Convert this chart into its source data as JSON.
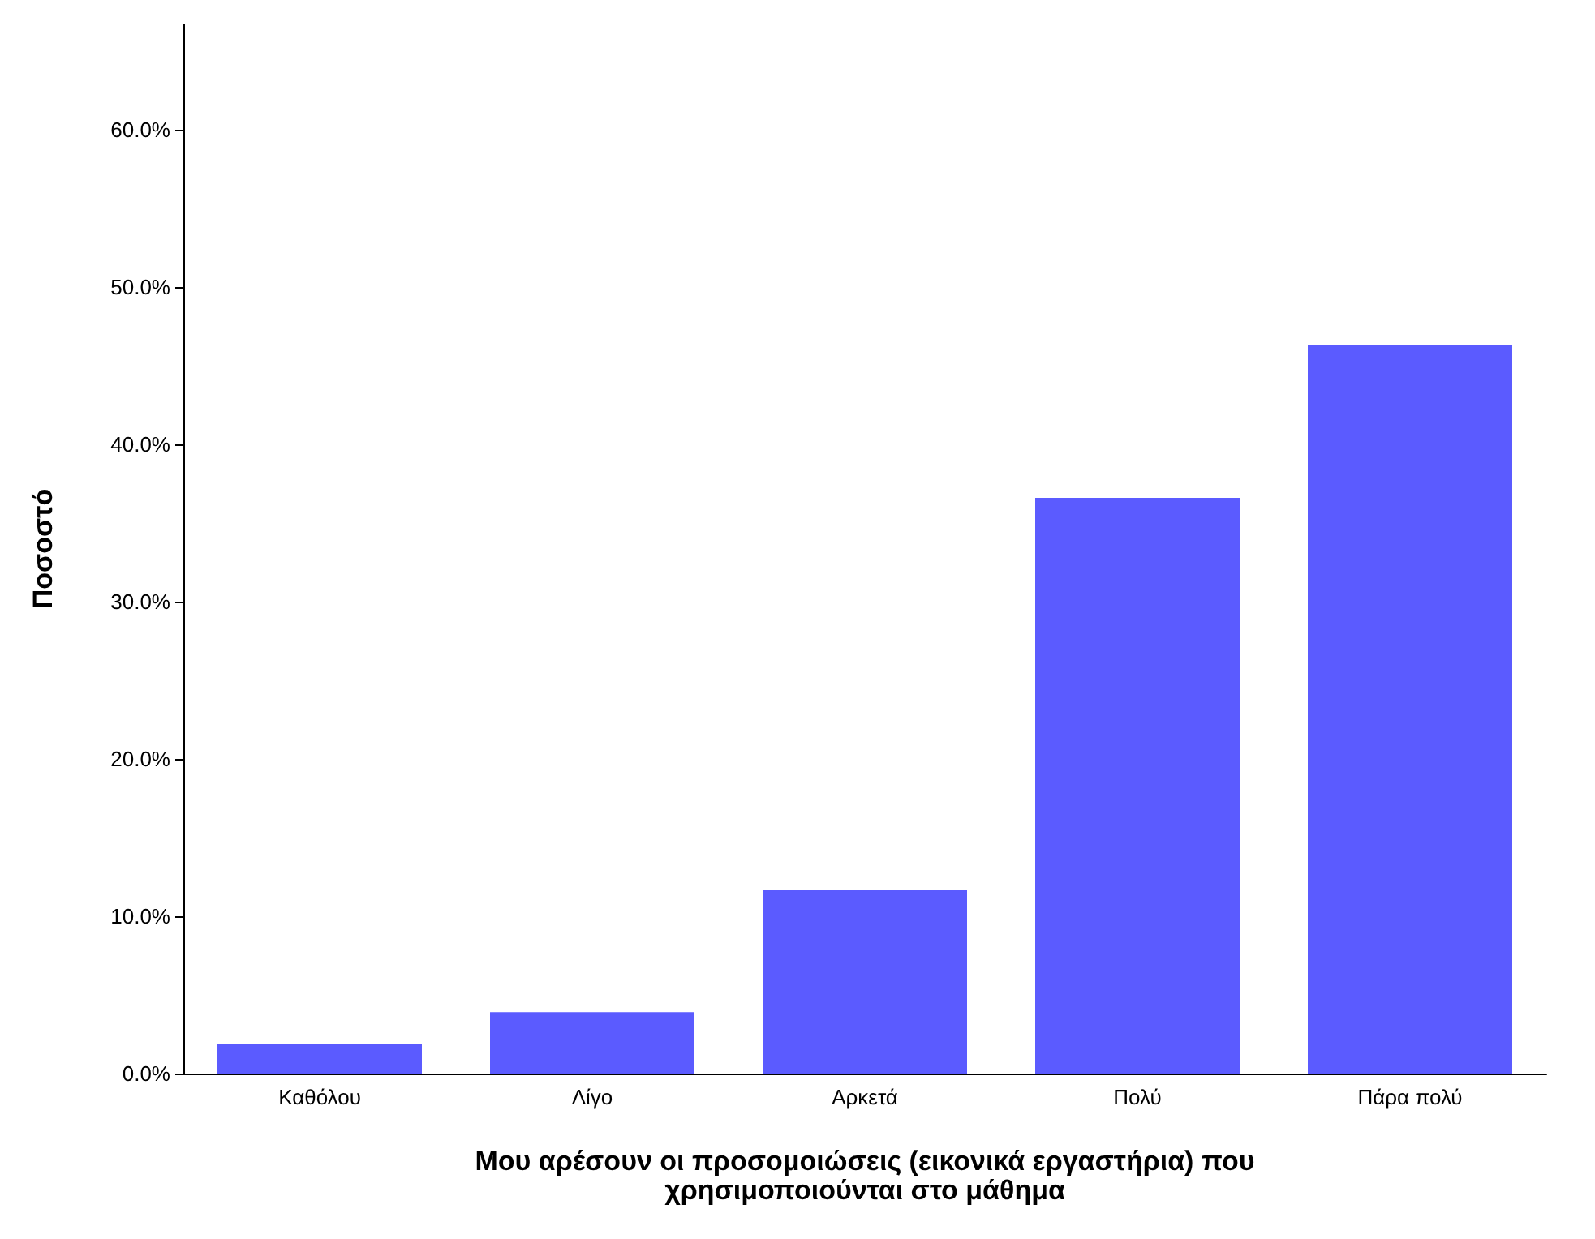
{
  "chart_data": {
    "type": "bar",
    "xlabel": "Μου αρέσουν οι προσομοιώσεις (εικονικά εργαστήρια) που\nχρησιμοποιούνται στο μάθημα",
    "ylabel": "Ποσοστό",
    "categories": [
      "Καθόλου",
      "Λίγο",
      "Αρκετά",
      "Πολύ",
      "Πάρα πολύ"
    ],
    "values": [
      1.9,
      3.9,
      11.7,
      36.6,
      46.3
    ],
    "color": "#5b5bff",
    "ylim": [
      0,
      66.7
    ],
    "yticks": [
      {
        "value": 0,
        "label": "0.0%"
      },
      {
        "value": 10,
        "label": "10.0%"
      },
      {
        "value": 20,
        "label": "20.0%"
      },
      {
        "value": 30,
        "label": "30.0%"
      },
      {
        "value": 40,
        "label": "40.0%"
      },
      {
        "value": 50,
        "label": "50.0%"
      },
      {
        "value": 60,
        "label": "60.0%"
      }
    ],
    "grid": false
  }
}
